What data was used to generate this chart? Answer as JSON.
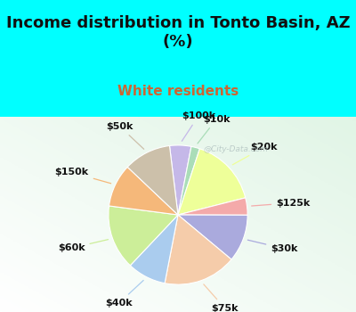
{
  "title": "Income distribution in Tonto Basin, AZ\n(%)",
  "subtitle": "White residents",
  "labels": [
    "$100k",
    "$10k",
    "$20k",
    "$125k",
    "$30k",
    "$75k",
    "$40k",
    "$60k",
    "$150k",
    "$50k"
  ],
  "sizes": [
    5,
    2,
    16,
    4,
    11,
    17,
    9,
    15,
    10,
    11
  ],
  "colors": [
    "#c5b8e8",
    "#aaddb8",
    "#eeff99",
    "#f4aaaa",
    "#aaaadd",
    "#f5ccaa",
    "#aaccee",
    "#ccee99",
    "#f5b87a",
    "#ccc0aa"
  ],
  "bg_cyan": "#00ffff",
  "bg_chart": "#e0f5eb",
  "title_fontsize": 13,
  "subtitle_fontsize": 11,
  "subtitle_color": "#cc6633",
  "label_fontsize": 8,
  "watermark": "@City-Data.com"
}
